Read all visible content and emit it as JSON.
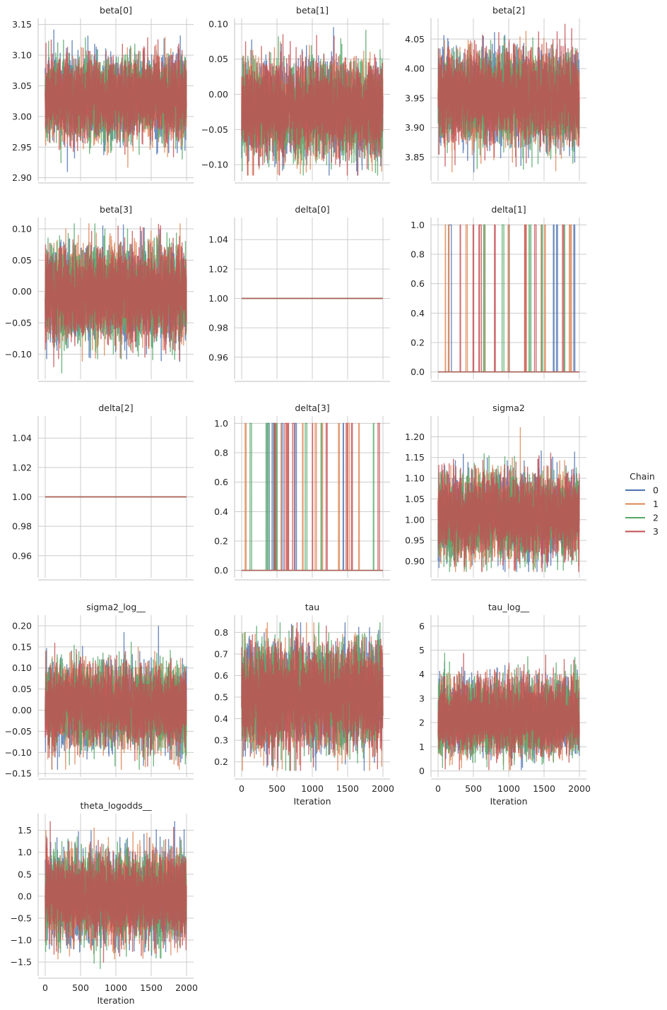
{
  "chart_data": {
    "type": "line",
    "figure_kind": "mcmc-trace-facet-grid",
    "x": {
      "label": "Iteration",
      "ticks": [
        0,
        500,
        1000,
        1500,
        2000
      ],
      "lim": [
        -100,
        2100
      ]
    },
    "legend": {
      "title": "Chain",
      "placement": "right",
      "entries": [
        {
          "label": "0",
          "color": "#4c72b0"
        },
        {
          "label": "1",
          "color": "#dd8452"
        },
        {
          "label": "2",
          "color": "#55a868"
        },
        {
          "label": "3",
          "color": "#c44e52"
        }
      ]
    },
    "grid": true,
    "n_draws_per_chain": 2000,
    "panels": [
      {
        "title": "beta[0]",
        "kind": "noise",
        "ylim": [
          2.895,
          3.16
        ],
        "yticks": [
          2.9,
          2.95,
          3.0,
          3.05,
          3.1,
          3.15
        ],
        "mean": 3.03,
        "sd": 0.03,
        "min": 2.91,
        "max": 3.155,
        "show_xticks": false
      },
      {
        "title": "beta[1]",
        "kind": "noise",
        "ylim": [
          -0.123,
          0.108
        ],
        "yticks": [
          -0.1,
          -0.05,
          0.0,
          0.05,
          0.1
        ],
        "mean": -0.02,
        "sd": 0.03,
        "min": -0.115,
        "max": 0.095,
        "show_xticks": false
      },
      {
        "title": "beta[2]",
        "kind": "noise",
        "ylim": [
          3.81,
          4.085
        ],
        "yticks": [
          3.85,
          3.9,
          3.95,
          4.0,
          4.05
        ],
        "mean": 3.95,
        "sd": 0.035,
        "min": 3.825,
        "max": 4.075,
        "show_xticks": false
      },
      {
        "title": "beta[3]",
        "kind": "noise",
        "ylim": [
          -0.14,
          0.118
        ],
        "yticks": [
          -0.1,
          -0.05,
          0.0,
          0.05,
          0.1
        ],
        "mean": -0.005,
        "sd": 0.033,
        "min": -0.13,
        "max": 0.108,
        "show_xticks": false
      },
      {
        "title": "delta[0]",
        "kind": "constant",
        "ylim": [
          0.945,
          1.055
        ],
        "yticks": [
          0.96,
          0.98,
          1.0,
          1.02,
          1.04
        ],
        "value": 1.0,
        "show_xticks": false
      },
      {
        "title": "delta[1]",
        "kind": "binary",
        "ylim": [
          -0.05,
          1.05
        ],
        "yticks": [
          0.0,
          0.2,
          0.4,
          0.6,
          0.8,
          1.0
        ],
        "show_xticks": false,
        "jumps": [
          [
            6,
            60
          ],
          [
            10,
            60
          ],
          [
            12,
            60
          ],
          [
            1,
            60
          ],
          [
            150,
            40
          ],
          [
            4,
            60
          ],
          [
            7,
            60
          ],
          [
            13,
            60
          ],
          [
            8,
            60
          ],
          [
            3,
            60
          ],
          [
            11,
            60
          ],
          [
            5,
            60
          ],
          [
            2,
            60
          ],
          [
            0,
            60
          ]
        ]
      },
      {
        "title": "delta[2]",
        "kind": "constant",
        "ylim": [
          0.945,
          1.055
        ],
        "yticks": [
          0.96,
          0.98,
          1.0,
          1.02,
          1.04
        ],
        "value": 1.0,
        "show_xticks": false
      },
      {
        "title": "delta[3]",
        "kind": "binary",
        "ylim": [
          -0.05,
          1.05
        ],
        "yticks": [
          0.0,
          0.2,
          0.4,
          0.6,
          0.8,
          1.0
        ],
        "show_xticks": false,
        "jumps": [
          [
            8,
            55
          ],
          [
            9,
            55
          ],
          [
            11,
            55
          ],
          [
            2,
            60
          ],
          [
            10,
            55
          ],
          [
            6,
            55
          ],
          [
            12,
            55
          ],
          [
            7,
            55
          ],
          [
            4,
            55
          ],
          [
            3,
            55
          ],
          [
            13,
            55
          ],
          [
            1,
            55
          ],
          [
            5,
            55
          ],
          [
            0,
            55
          ]
        ]
      },
      {
        "title": "sigma2",
        "kind": "noise",
        "ylim": [
          0.86,
          1.25
        ],
        "yticks": [
          0.9,
          0.95,
          1.0,
          1.05,
          1.1,
          1.15,
          1.2
        ],
        "mean": 1.01,
        "sd": 0.045,
        "min": 0.875,
        "max": 1.23,
        "show_xticks": false
      },
      {
        "title": "sigma2_log__",
        "kind": "noise",
        "ylim": [
          -0.158,
          0.225
        ],
        "yticks": [
          -0.15,
          -0.1,
          -0.05,
          0.0,
          0.05,
          0.1,
          0.15,
          0.2
        ],
        "mean": 0.01,
        "sd": 0.045,
        "min": -0.14,
        "max": 0.205,
        "show_xticks": false
      },
      {
        "title": "tau",
        "kind": "noise",
        "ylim": [
          0.13,
          0.88
        ],
        "yticks": [
          0.2,
          0.3,
          0.4,
          0.5,
          0.6,
          0.7,
          0.8
        ],
        "mean": 0.5,
        "sd": 0.11,
        "min": 0.16,
        "max": 0.845,
        "show_xticks": true
      },
      {
        "title": "tau_log__",
        "kind": "noise",
        "ylim": [
          -0.25,
          6.45
        ],
        "yticks": [
          0,
          1,
          2,
          3,
          4,
          5,
          6
        ],
        "mean": 2.0,
        "sd": 0.65,
        "min": 0.05,
        "max": 6.15,
        "skew": true,
        "show_xticks": true
      },
      {
        "title": "theta_logodds__",
        "kind": "noise",
        "ylim": [
          -1.82,
          1.88
        ],
        "yticks": [
          -1.5,
          -1.0,
          -0.5,
          0.0,
          0.5,
          1.0,
          1.5
        ],
        "mean": 0.0,
        "sd": 0.45,
        "min": -1.65,
        "max": 1.7,
        "show_xticks": true
      }
    ]
  }
}
